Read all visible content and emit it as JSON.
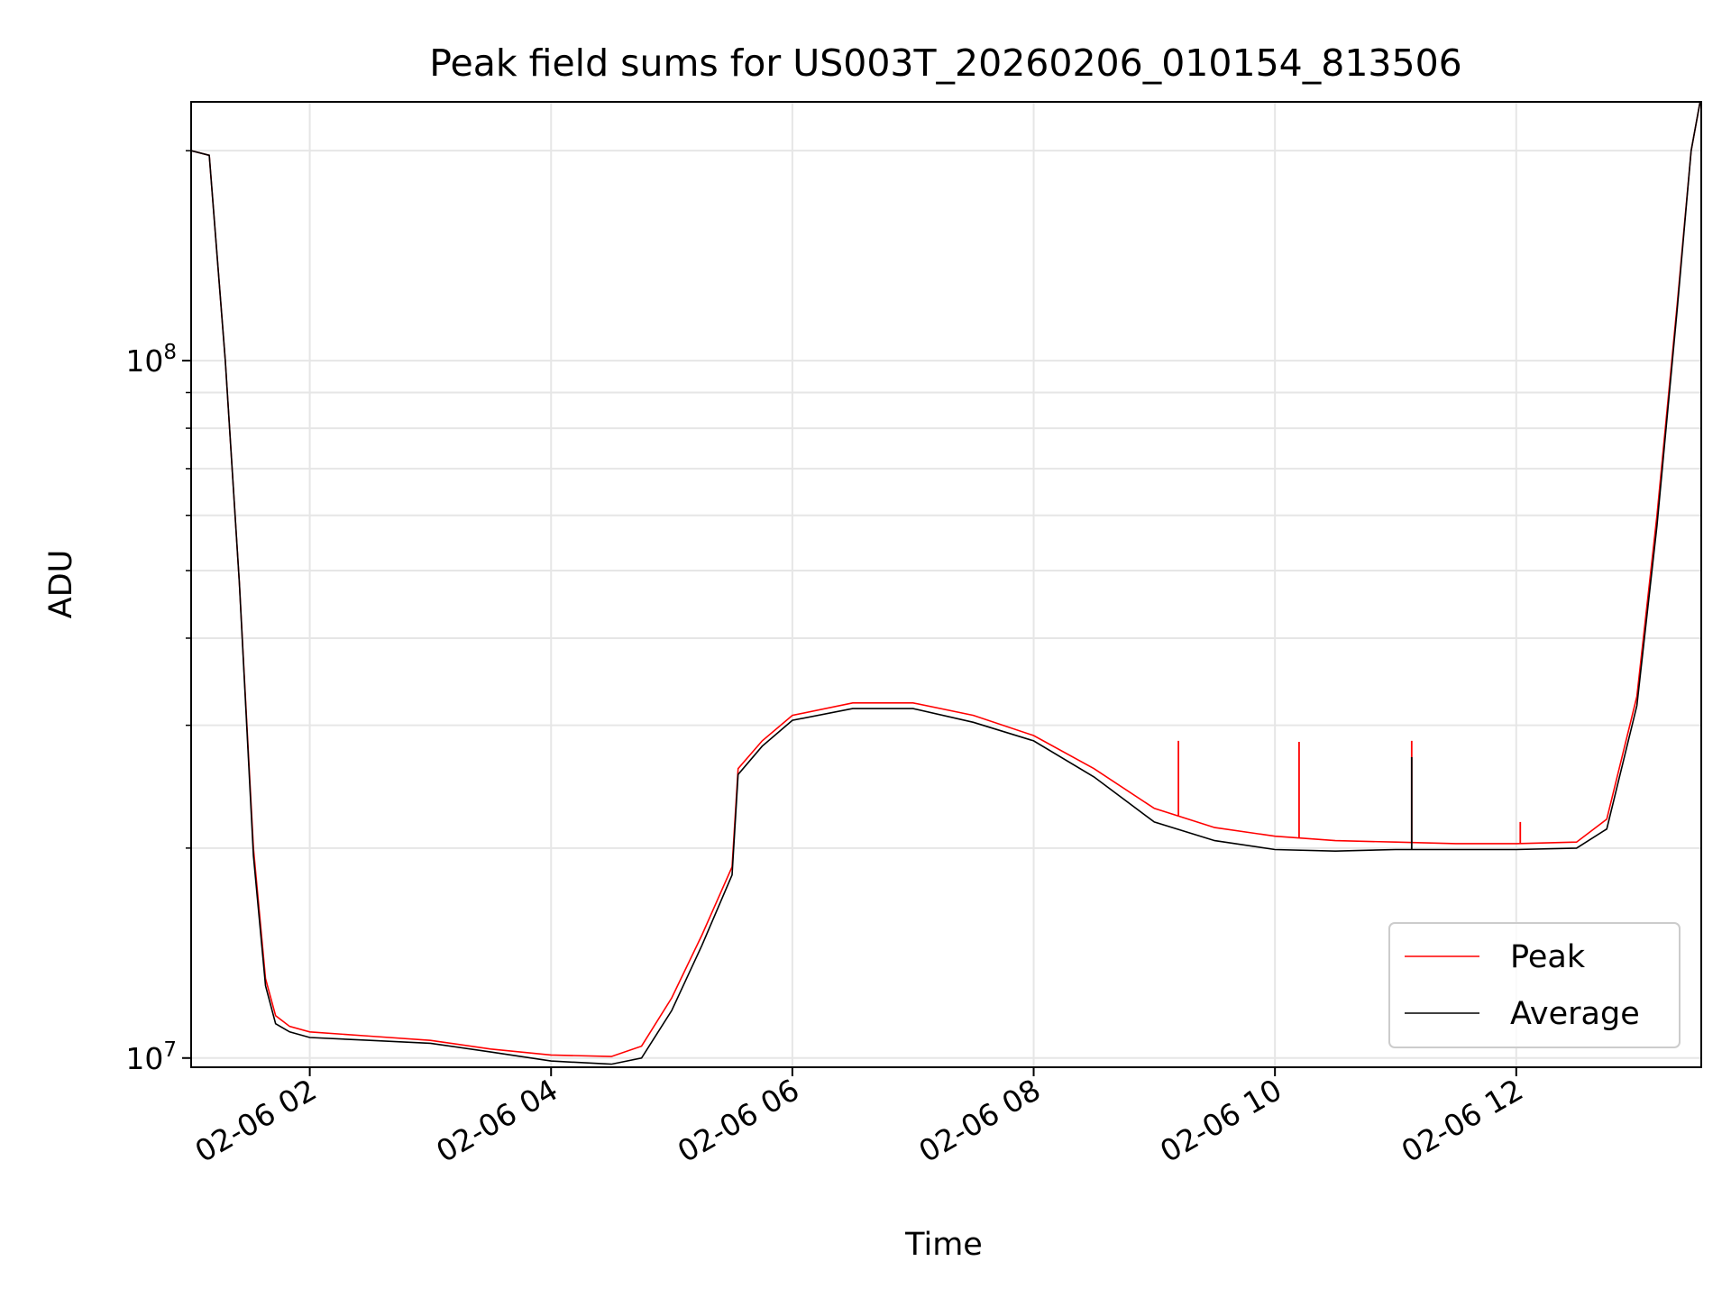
{
  "chart_data": {
    "type": "line",
    "title": "Peak field sums for US003T_20260206_010154_813506",
    "xlabel": "Time",
    "ylabel": "ADU",
    "x_scale": "time",
    "y_scale": "log",
    "xlim": [
      "2026-02-06 01:01",
      "2026-02-06 13:32"
    ],
    "ylim": [
      9700000,
      235000000
    ],
    "x_ticks": [
      "02-06 02",
      "02-06 04",
      "02-06 06",
      "02-06 08",
      "02-06 10",
      "02-06 12"
    ],
    "y_ticks": [
      {
        "base": "10",
        "exponent": "7"
      },
      {
        "base": "10",
        "exponent": "8"
      }
    ],
    "grid": true,
    "legend_position": "lower right",
    "series": [
      {
        "name": "Peak",
        "color": "#ff0000",
        "x": [
          "2026-02-06 01:01",
          "2026-02-06 01:10",
          "2026-02-06 01:18",
          "2026-02-06 01:25",
          "2026-02-06 01:32",
          "2026-02-06 01:38",
          "2026-02-06 01:43",
          "2026-02-06 01:50",
          "2026-02-06 02:00",
          "2026-02-06 02:30",
          "2026-02-06 03:00",
          "2026-02-06 03:30",
          "2026-02-06 04:00",
          "2026-02-06 04:30",
          "2026-02-06 04:45",
          "2026-02-06 05:00",
          "2026-02-06 05:15",
          "2026-02-06 05:30",
          "2026-02-06 05:33",
          "2026-02-06 05:45",
          "2026-02-06 06:00",
          "2026-02-06 06:30",
          "2026-02-06 07:00",
          "2026-02-06 07:30",
          "2026-02-06 08:00",
          "2026-02-06 08:30",
          "2026-02-06 09:00",
          "2026-02-06 09:30",
          "2026-02-06 10:00",
          "2026-02-06 10:30",
          "2026-02-06 11:00",
          "2026-02-06 11:30",
          "2026-02-06 12:00",
          "2026-02-06 12:30",
          "2026-02-06 12:45",
          "2026-02-06 13:00",
          "2026-02-06 13:10",
          "2026-02-06 13:20",
          "2026-02-06 13:27",
          "2026-02-06 13:32"
        ],
        "values": [
          200000000,
          197000000,
          100000000,
          48000000,
          20000000,
          13000000,
          11500000,
          11100000,
          10900000,
          10750000,
          10600000,
          10300000,
          10100000,
          10050000,
          10400000,
          12200000,
          15000000,
          18800000,
          26000000,
          28500000,
          31000000,
          32300000,
          32300000,
          31000000,
          29000000,
          26000000,
          22800000,
          21400000,
          20800000,
          20500000,
          20400000,
          20300000,
          20300000,
          20400000,
          22000000,
          33000000,
          60000000,
          120000000,
          200000000,
          240000000
        ]
      },
      {
        "name": "Average",
        "color": "#000000",
        "x": [
          "2026-02-06 01:01",
          "2026-02-06 01:10",
          "2026-02-06 01:18",
          "2026-02-06 01:25",
          "2026-02-06 01:32",
          "2026-02-06 01:38",
          "2026-02-06 01:43",
          "2026-02-06 01:50",
          "2026-02-06 02:00",
          "2026-02-06 02:30",
          "2026-02-06 03:00",
          "2026-02-06 03:30",
          "2026-02-06 04:00",
          "2026-02-06 04:30",
          "2026-02-06 04:45",
          "2026-02-06 05:00",
          "2026-02-06 05:15",
          "2026-02-06 05:30",
          "2026-02-06 05:33",
          "2026-02-06 05:45",
          "2026-02-06 06:00",
          "2026-02-06 06:30",
          "2026-02-06 07:00",
          "2026-02-06 07:30",
          "2026-02-06 08:00",
          "2026-02-06 08:30",
          "2026-02-06 09:00",
          "2026-02-06 09:30",
          "2026-02-06 10:00",
          "2026-02-06 10:30",
          "2026-02-06 11:00",
          "2026-02-06 11:30",
          "2026-02-06 12:00",
          "2026-02-06 12:30",
          "2026-02-06 12:45",
          "2026-02-06 13:00",
          "2026-02-06 13:10",
          "2026-02-06 13:20",
          "2026-02-06 13:27",
          "2026-02-06 13:32"
        ],
        "values": [
          200000000,
          197000000,
          100000000,
          48000000,
          19500000,
          12700000,
          11200000,
          10900000,
          10700000,
          10600000,
          10500000,
          10200000,
          9900000,
          9800000,
          10000000,
          11700000,
          14500000,
          18300000,
          25500000,
          28000000,
          30500000,
          31700000,
          31700000,
          30300000,
          28500000,
          25300000,
          21800000,
          20500000,
          19900000,
          19800000,
          19900000,
          19900000,
          19900000,
          20000000,
          21300000,
          32000000,
          58000000,
          118000000,
          200000000,
          240000000
        ]
      }
    ],
    "spikes": [
      {
        "series": "Peak",
        "x": "2026-02-06 09:12",
        "value": 28500000
      },
      {
        "series": "Peak",
        "x": "2026-02-06 10:12",
        "value": 28400000
      },
      {
        "series": "Peak",
        "x": "2026-02-06 11:08",
        "value": 28500000
      },
      {
        "series": "Average",
        "x": "2026-02-06 11:08",
        "value": 27000000
      },
      {
        "series": "Peak",
        "x": "2026-02-06 12:02",
        "value": 21800000
      }
    ]
  }
}
